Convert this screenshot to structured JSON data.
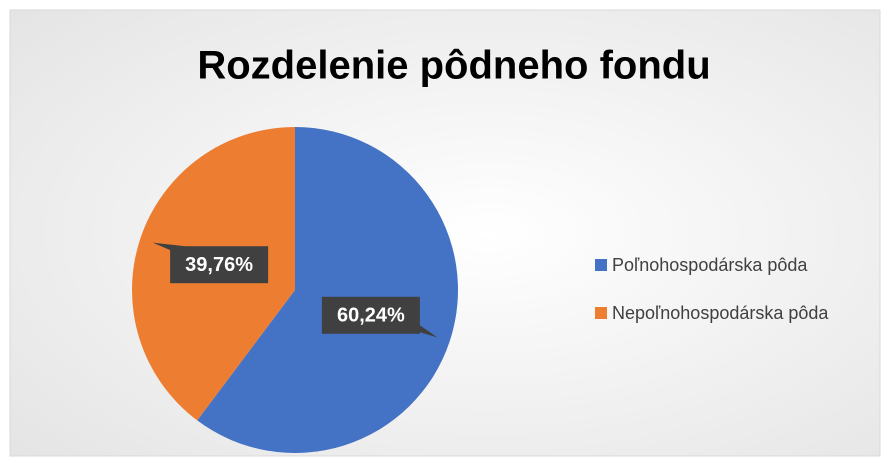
{
  "chart_data": {
    "type": "pie",
    "title": "Rozdelenie pôdneho fondu",
    "categories": [
      "Poľnohospodárska pôda",
      "Nepoľnohospodárska pôda"
    ],
    "values": [
      60.24,
      39.76
    ],
    "value_labels": [
      "60,24%",
      "39,76%"
    ],
    "colors": [
      "#4472c4",
      "#ed7d31"
    ],
    "legend": "right"
  }
}
